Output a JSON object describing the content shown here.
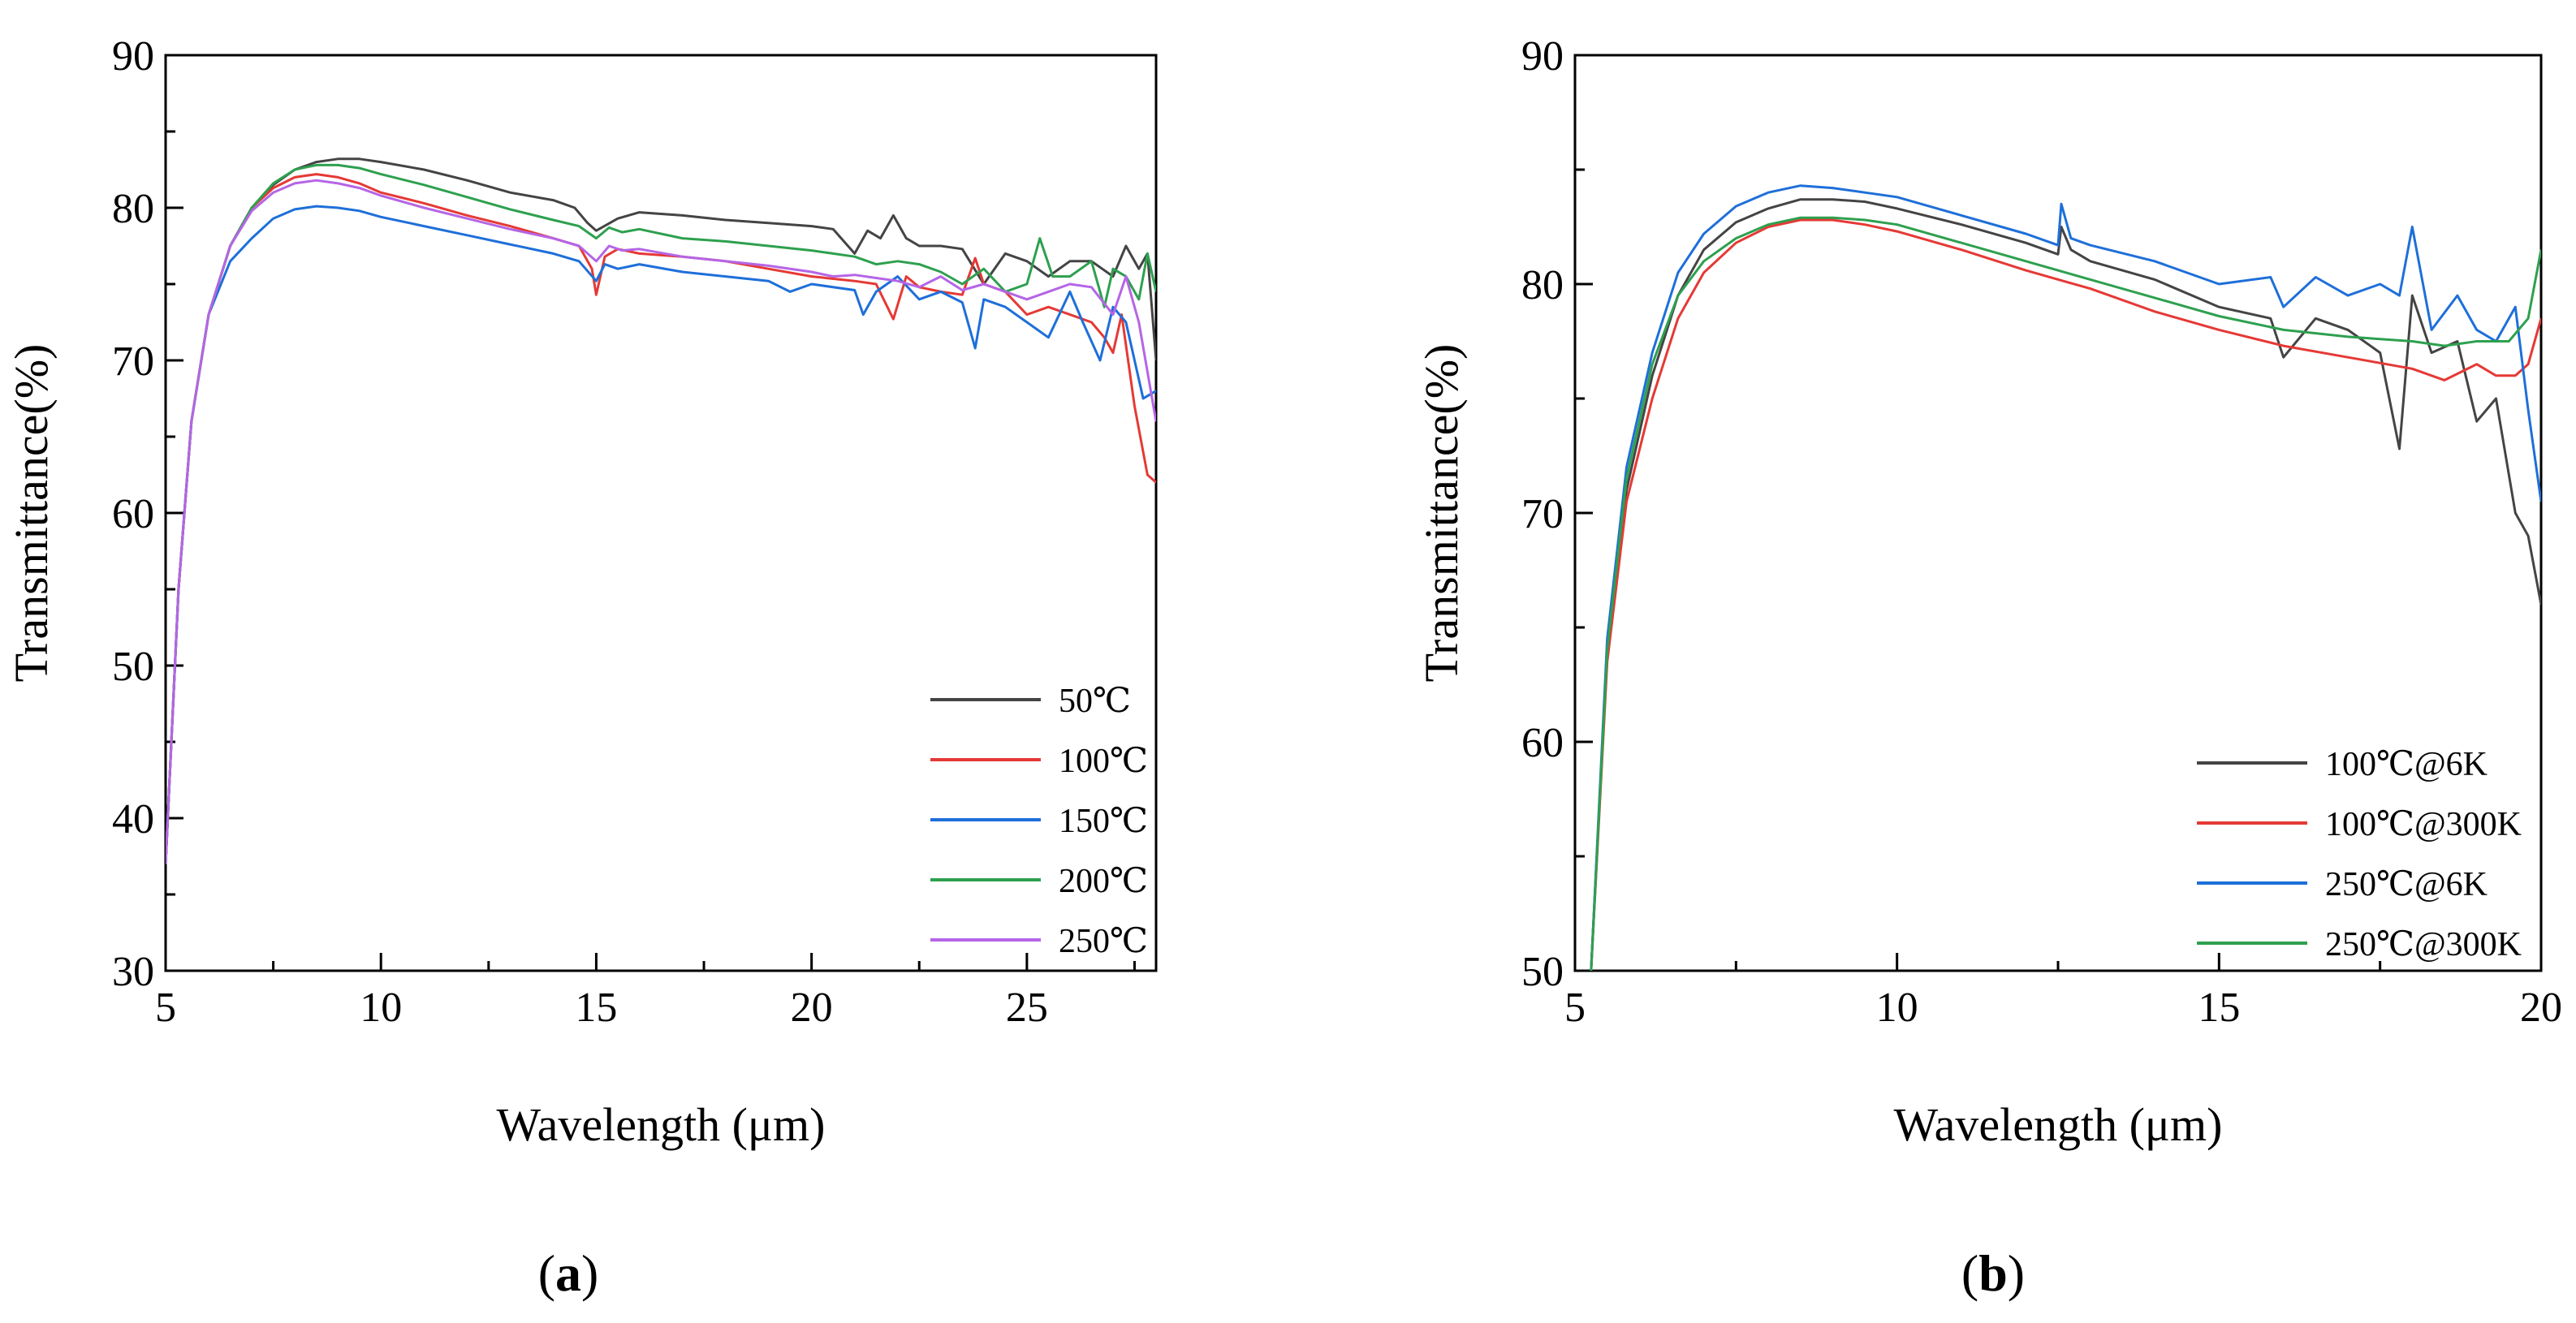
{
  "chart_data": [
    {
      "panel": "a",
      "panel_label": "(a)",
      "type": "line",
      "title": "",
      "xlabel": "Wavelength (μm)",
      "ylabel": "Transmittance(%)",
      "xlim": [
        5,
        28
      ],
      "ylim": [
        30,
        90
      ],
      "xticks": [
        5,
        10,
        15,
        20,
        25
      ],
      "yticks": [
        30,
        40,
        50,
        60,
        70,
        80,
        90
      ],
      "legend_position": "bottom-right",
      "series": [
        {
          "name": "50℃",
          "color": "#444444",
          "x": [
            5.0,
            5.3,
            5.6,
            6.0,
            6.5,
            7.0,
            7.5,
            8.0,
            8.5,
            9.0,
            9.5,
            10.0,
            11.0,
            12.0,
            13.0,
            14.0,
            14.5,
            14.8,
            15.0,
            15.5,
            16.0,
            17.0,
            18.0,
            19.0,
            20.0,
            20.5,
            21.0,
            21.3,
            21.6,
            21.9,
            22.2,
            22.5,
            23.0,
            23.5,
            24.0,
            24.5,
            25.0,
            25.5,
            26.0,
            26.5,
            27.0,
            27.3,
            27.6,
            27.8,
            28.0
          ],
          "y": [
            37.0,
            55.0,
            66.0,
            73.0,
            77.5,
            80.0,
            81.5,
            82.5,
            83.0,
            83.2,
            83.2,
            83.0,
            82.5,
            81.8,
            81.0,
            80.5,
            80.0,
            79.0,
            78.5,
            79.3,
            79.7,
            79.5,
            79.2,
            79.0,
            78.8,
            78.6,
            77.0,
            78.5,
            78.0,
            79.5,
            78.0,
            77.5,
            77.5,
            77.3,
            75.0,
            77.0,
            76.5,
            75.5,
            76.5,
            76.5,
            75.5,
            77.5,
            76.0,
            77.0,
            70.0
          ]
        },
        {
          "name": "100℃",
          "color": "#e53935",
          "x": [
            5.0,
            5.3,
            5.6,
            6.0,
            6.5,
            7.0,
            7.5,
            8.0,
            8.5,
            9.0,
            9.5,
            10.0,
            11.0,
            12.0,
            13.0,
            14.0,
            14.6,
            14.9,
            15.0,
            15.2,
            15.5,
            16.0,
            17.0,
            18.0,
            19.0,
            20.0,
            21.0,
            21.5,
            21.9,
            22.2,
            22.5,
            23.0,
            23.5,
            23.8,
            24.0,
            24.5,
            25.0,
            25.5,
            26.0,
            26.5,
            26.8,
            27.0,
            27.2,
            27.5,
            27.8,
            28.0
          ],
          "y": [
            37.0,
            55.0,
            66.0,
            73.0,
            77.5,
            80.0,
            81.3,
            82.0,
            82.2,
            82.0,
            81.6,
            81.0,
            80.3,
            79.5,
            78.8,
            78.0,
            77.5,
            76.0,
            74.3,
            76.8,
            77.3,
            77.0,
            76.8,
            76.5,
            76.0,
            75.5,
            75.2,
            75.0,
            72.7,
            75.5,
            74.8,
            74.5,
            74.3,
            76.7,
            75.0,
            74.5,
            73.0,
            73.5,
            73.0,
            72.5,
            71.5,
            70.5,
            73.0,
            67.0,
            62.5,
            62.0
          ]
        },
        {
          "name": "150℃",
          "color": "#1e6fd9",
          "x": [
            5.0,
            5.3,
            5.6,
            6.0,
            6.5,
            7.0,
            7.5,
            8.0,
            8.5,
            9.0,
            9.5,
            10.0,
            11.0,
            12.0,
            13.0,
            14.0,
            14.6,
            15.0,
            15.2,
            15.5,
            16.0,
            17.0,
            18.0,
            19.0,
            19.5,
            20.0,
            21.0,
            21.2,
            21.5,
            22.0,
            22.5,
            23.0,
            23.5,
            23.8,
            24.0,
            24.5,
            25.0,
            25.5,
            26.0,
            26.3,
            26.7,
            27.0,
            27.3,
            27.7,
            28.0
          ],
          "y": [
            37.0,
            55.0,
            66.0,
            73.0,
            76.5,
            78.0,
            79.3,
            79.9,
            80.1,
            80.0,
            79.8,
            79.4,
            78.8,
            78.2,
            77.6,
            77.0,
            76.5,
            75.2,
            76.3,
            76.0,
            76.3,
            75.8,
            75.5,
            75.2,
            74.5,
            75.0,
            74.6,
            73.0,
            74.5,
            75.5,
            74.0,
            74.5,
            73.8,
            70.8,
            74.0,
            73.5,
            72.5,
            71.5,
            74.5,
            72.5,
            70.0,
            73.5,
            72.5,
            67.5,
            68.0
          ]
        },
        {
          "name": "200℃",
          "color": "#2ea04f",
          "x": [
            5.0,
            5.3,
            5.6,
            6.0,
            6.5,
            7.0,
            7.5,
            8.0,
            8.5,
            9.0,
            9.5,
            10.0,
            11.0,
            12.0,
            13.0,
            14.0,
            14.6,
            15.0,
            15.3,
            15.6,
            16.0,
            17.0,
            18.0,
            19.0,
            20.0,
            20.5,
            21.0,
            21.5,
            22.0,
            22.5,
            23.0,
            23.5,
            24.0,
            24.5,
            25.0,
            25.3,
            25.6,
            26.0,
            26.5,
            26.8,
            27.0,
            27.3,
            27.6,
            27.8,
            28.0
          ],
          "y": [
            37.0,
            55.0,
            66.0,
            73.0,
            77.5,
            80.0,
            81.6,
            82.5,
            82.8,
            82.8,
            82.6,
            82.2,
            81.5,
            80.7,
            79.9,
            79.2,
            78.8,
            78.0,
            78.7,
            78.4,
            78.6,
            78.0,
            77.8,
            77.5,
            77.2,
            77.0,
            76.8,
            76.3,
            76.5,
            76.3,
            75.8,
            75.0,
            76.0,
            74.5,
            75.0,
            78.0,
            75.5,
            75.5,
            76.5,
            73.5,
            76.0,
            75.5,
            74.0,
            77.0,
            74.5
          ]
        },
        {
          "name": "250℃",
          "color": "#b565e6",
          "x": [
            5.0,
            5.3,
            5.6,
            6.0,
            6.5,
            7.0,
            7.5,
            8.0,
            8.5,
            9.0,
            9.5,
            10.0,
            11.0,
            12.0,
            13.0,
            14.0,
            14.6,
            15.0,
            15.3,
            15.6,
            16.0,
            17.0,
            18.0,
            19.0,
            20.0,
            20.5,
            21.0,
            21.5,
            22.0,
            22.5,
            23.0,
            23.5,
            24.0,
            24.5,
            25.0,
            25.5,
            26.0,
            26.5,
            27.0,
            27.3,
            27.6,
            28.0
          ],
          "y": [
            37.0,
            55.0,
            66.0,
            73.0,
            77.5,
            79.8,
            81.0,
            81.6,
            81.8,
            81.6,
            81.3,
            80.8,
            80.0,
            79.3,
            78.6,
            78.0,
            77.5,
            76.5,
            77.5,
            77.2,
            77.3,
            76.8,
            76.5,
            76.2,
            75.8,
            75.5,
            75.6,
            75.4,
            75.2,
            74.8,
            75.5,
            74.6,
            75.0,
            74.5,
            74.0,
            74.5,
            75.0,
            74.8,
            73.0,
            75.5,
            72.5,
            66.0
          ]
        }
      ]
    },
    {
      "panel": "b",
      "panel_label": "(b)",
      "type": "line",
      "title": "",
      "xlabel": "Wavelength (μm)",
      "ylabel": "Transmittance(%)",
      "xlim": [
        5,
        20
      ],
      "ylim": [
        50,
        90
      ],
      "xticks": [
        5,
        10,
        15,
        20
      ],
      "yticks": [
        50,
        60,
        70,
        80,
        90
      ],
      "legend_position": "bottom-right",
      "series": [
        {
          "name": "100℃@6K",
          "color": "#444444",
          "x": [
            5.25,
            5.5,
            5.8,
            6.2,
            6.6,
            7.0,
            7.5,
            8.0,
            8.5,
            9.0,
            9.5,
            10.0,
            11.0,
            12.0,
            12.5,
            12.55,
            12.7,
            13.0,
            14.0,
            15.0,
            15.8,
            16.0,
            16.5,
            17.0,
            17.5,
            17.8,
            18.0,
            18.3,
            18.7,
            19.0,
            19.3,
            19.6,
            19.8,
            20.0
          ],
          "y": [
            50.0,
            64.0,
            71.0,
            76.0,
            79.5,
            81.5,
            82.7,
            83.3,
            83.7,
            83.7,
            83.6,
            83.3,
            82.6,
            81.8,
            81.3,
            82.5,
            81.5,
            81.0,
            80.2,
            79.0,
            78.5,
            76.8,
            78.5,
            78.0,
            77.0,
            72.8,
            79.5,
            77.0,
            77.5,
            74.0,
            75.0,
            70.0,
            69.0,
            66.0
          ]
        },
        {
          "name": "100℃@300K",
          "color": "#e53935",
          "x": [
            5.25,
            5.5,
            5.8,
            6.2,
            6.6,
            7.0,
            7.5,
            8.0,
            8.5,
            9.0,
            9.5,
            10.0,
            11.0,
            12.0,
            13.0,
            14.0,
            15.0,
            16.0,
            17.0,
            18.0,
            18.5,
            19.0,
            19.3,
            19.6,
            19.8,
            20.0
          ],
          "y": [
            50.0,
            63.5,
            70.5,
            75.0,
            78.5,
            80.5,
            81.8,
            82.5,
            82.8,
            82.8,
            82.6,
            82.3,
            81.5,
            80.6,
            79.8,
            78.8,
            78.0,
            77.3,
            76.8,
            76.3,
            75.8,
            76.5,
            76.0,
            76.0,
            76.5,
            78.5
          ]
        },
        {
          "name": "250℃@6K",
          "color": "#1e6fd9",
          "x": [
            5.25,
            5.5,
            5.8,
            6.2,
            6.6,
            7.0,
            7.5,
            8.0,
            8.5,
            9.0,
            9.5,
            10.0,
            11.0,
            12.0,
            12.5,
            12.55,
            12.7,
            13.0,
            14.0,
            15.0,
            15.8,
            16.0,
            16.5,
            17.0,
            17.5,
            17.8,
            18.0,
            18.3,
            18.7,
            19.0,
            19.3,
            19.6,
            19.8,
            20.0
          ],
          "y": [
            50.0,
            64.5,
            72.0,
            77.0,
            80.5,
            82.2,
            83.4,
            84.0,
            84.3,
            84.2,
            84.0,
            83.8,
            83.0,
            82.2,
            81.7,
            83.5,
            82.0,
            81.7,
            81.0,
            80.0,
            80.3,
            79.0,
            80.3,
            79.5,
            80.0,
            79.5,
            82.5,
            78.0,
            79.5,
            78.0,
            77.5,
            79.0,
            74.5,
            70.5
          ]
        },
        {
          "name": "250℃@300K",
          "color": "#2ea04f",
          "x": [
            5.25,
            5.5,
            5.8,
            6.2,
            6.6,
            7.0,
            7.5,
            8.0,
            8.5,
            9.0,
            9.5,
            10.0,
            11.0,
            12.0,
            13.0,
            14.0,
            15.0,
            16.0,
            17.0,
            18.0,
            18.5,
            19.0,
            19.5,
            19.8,
            20.0
          ],
          "y": [
            50.0,
            64.0,
            71.5,
            76.5,
            79.5,
            81.0,
            82.0,
            82.6,
            82.9,
            82.9,
            82.8,
            82.6,
            81.8,
            81.0,
            80.2,
            79.4,
            78.6,
            78.0,
            77.7,
            77.5,
            77.3,
            77.5,
            77.5,
            78.5,
            81.5
          ]
        }
      ]
    }
  ]
}
